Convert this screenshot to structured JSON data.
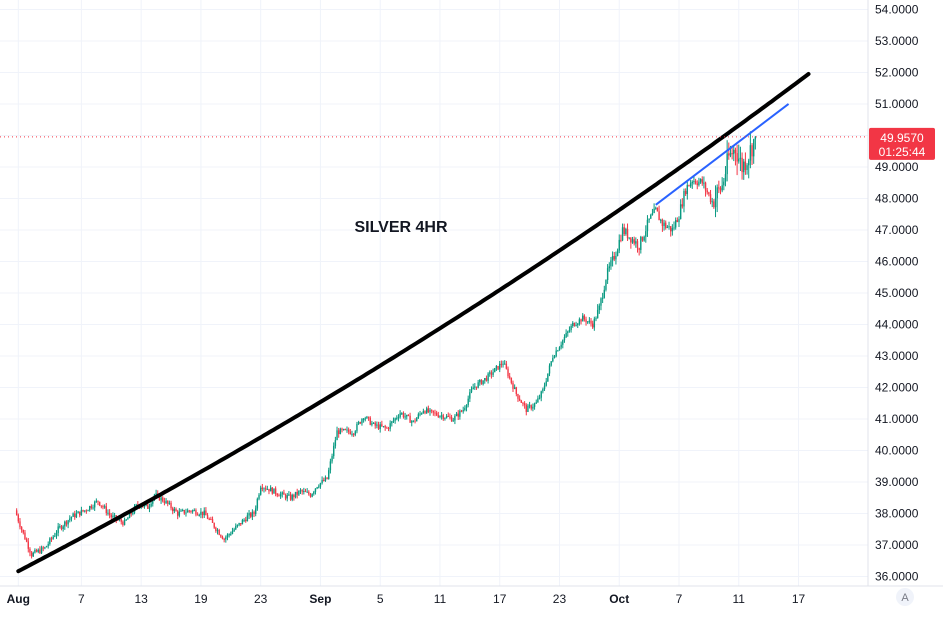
{
  "chart_data": {
    "type": "candlestick",
    "title": "SILVER 4HR",
    "ylim": [
      35.7,
      54.3
    ],
    "y_ticks": [
      "54.0000",
      "53.0000",
      "52.0000",
      "51.0000",
      "50.0000",
      "49.0000",
      "48.0000",
      "47.0000",
      "46.0000",
      "45.0000",
      "44.0000",
      "43.0000",
      "42.0000",
      "41.0000",
      "40.0000",
      "39.0000",
      "38.0000",
      "37.0000",
      "36.0000"
    ],
    "x_ticks": [
      {
        "label": "Aug",
        "bar": 2,
        "major": true
      },
      {
        "label": "7",
        "bar": 40,
        "major": false
      },
      {
        "label": "13",
        "bar": 76,
        "major": false
      },
      {
        "label": "19",
        "bar": 112,
        "major": false
      },
      {
        "label": "23",
        "bar": 148,
        "major": false
      },
      {
        "label": "Sep",
        "bar": 184,
        "major": true
      },
      {
        "label": "5",
        "bar": 220,
        "major": false
      },
      {
        "label": "11",
        "bar": 256,
        "major": false
      },
      {
        "label": "17",
        "bar": 292,
        "major": false
      },
      {
        "label": "23",
        "bar": 328,
        "major": false
      },
      {
        "label": "Oct",
        "bar": 364,
        "major": true
      },
      {
        "label": "7",
        "bar": 400,
        "major": false
      },
      {
        "label": "11",
        "bar": 436,
        "major": false
      },
      {
        "label": "17",
        "bar": 472,
        "major": false
      }
    ],
    "last_price": {
      "value": 49.957,
      "label": "49.9570",
      "countdown": "01:25:44"
    },
    "colors": {
      "up": "#089981",
      "down": "#f23645",
      "curve": "#000000",
      "trend": "#2962ff",
      "price": "#f23645",
      "grid": "#f0f3fa"
    },
    "close_path": [
      [
        0,
        38.1
      ],
      [
        4,
        37.5
      ],
      [
        10,
        36.7
      ],
      [
        18,
        36.9
      ],
      [
        26,
        37.5
      ],
      [
        34,
        37.9
      ],
      [
        42,
        38.1
      ],
      [
        50,
        38.4
      ],
      [
        58,
        37.9
      ],
      [
        66,
        37.7
      ],
      [
        74,
        38.3
      ],
      [
        80,
        38.2
      ],
      [
        84,
        38.6
      ],
      [
        90,
        38.4
      ],
      [
        98,
        38.0
      ],
      [
        106,
        38.1
      ],
      [
        114,
        38.0
      ],
      [
        120,
        37.6
      ],
      [
        126,
        37.2
      ],
      [
        134,
        37.6
      ],
      [
        140,
        37.9
      ],
      [
        144,
        38.0
      ],
      [
        148,
        38.9
      ],
      [
        152,
        38.8
      ],
      [
        160,
        38.6
      ],
      [
        166,
        38.5
      ],
      [
        172,
        38.7
      ],
      [
        178,
        38.6
      ],
      [
        182,
        38.9
      ],
      [
        188,
        39.1
      ],
      [
        194,
        40.6
      ],
      [
        204,
        40.6
      ],
      [
        210,
        41.1
      ],
      [
        216,
        40.8
      ],
      [
        224,
        40.7
      ],
      [
        232,
        41.2
      ],
      [
        240,
        40.9
      ],
      [
        246,
        41.3
      ],
      [
        250,
        41.2
      ],
      [
        258,
        41.1
      ],
      [
        264,
        41.0
      ],
      [
        270,
        41.3
      ],
      [
        276,
        42.0
      ],
      [
        284,
        42.3
      ],
      [
        290,
        42.6
      ],
      [
        294,
        42.8
      ],
      [
        298,
        42.3
      ],
      [
        302,
        41.8
      ],
      [
        308,
        41.3
      ],
      [
        314,
        41.5
      ],
      [
        318,
        41.9
      ],
      [
        324,
        43.0
      ],
      [
        330,
        43.5
      ],
      [
        336,
        44.0
      ],
      [
        342,
        44.2
      ],
      [
        348,
        44.0
      ],
      [
        352,
        44.5
      ],
      [
        356,
        45.5
      ],
      [
        362,
        46.3
      ],
      [
        366,
        47.0
      ],
      [
        370,
        46.8
      ],
      [
        376,
        46.5
      ],
      [
        382,
        47.3
      ],
      [
        386,
        47.6
      ],
      [
        390,
        47.2
      ],
      [
        396,
        47.0
      ],
      [
        400,
        47.5
      ],
      [
        404,
        48.3
      ],
      [
        408,
        48.6
      ],
      [
        414,
        48.5
      ],
      [
        420,
        47.9
      ],
      [
        426,
        48.4
      ],
      [
        430,
        49.3
      ],
      [
        434,
        49.6
      ],
      [
        438,
        49.0
      ],
      [
        442,
        49.4
      ],
      [
        446,
        49.957
      ]
    ],
    "support_curve": {
      "x_start_bar": 2,
      "x_end_bar": 478,
      "y_start": 36.17,
      "y_end": 51.95
    },
    "trend_line": [
      [
        386,
        47.8
      ],
      [
        466,
        51.0
      ]
    ]
  }
}
